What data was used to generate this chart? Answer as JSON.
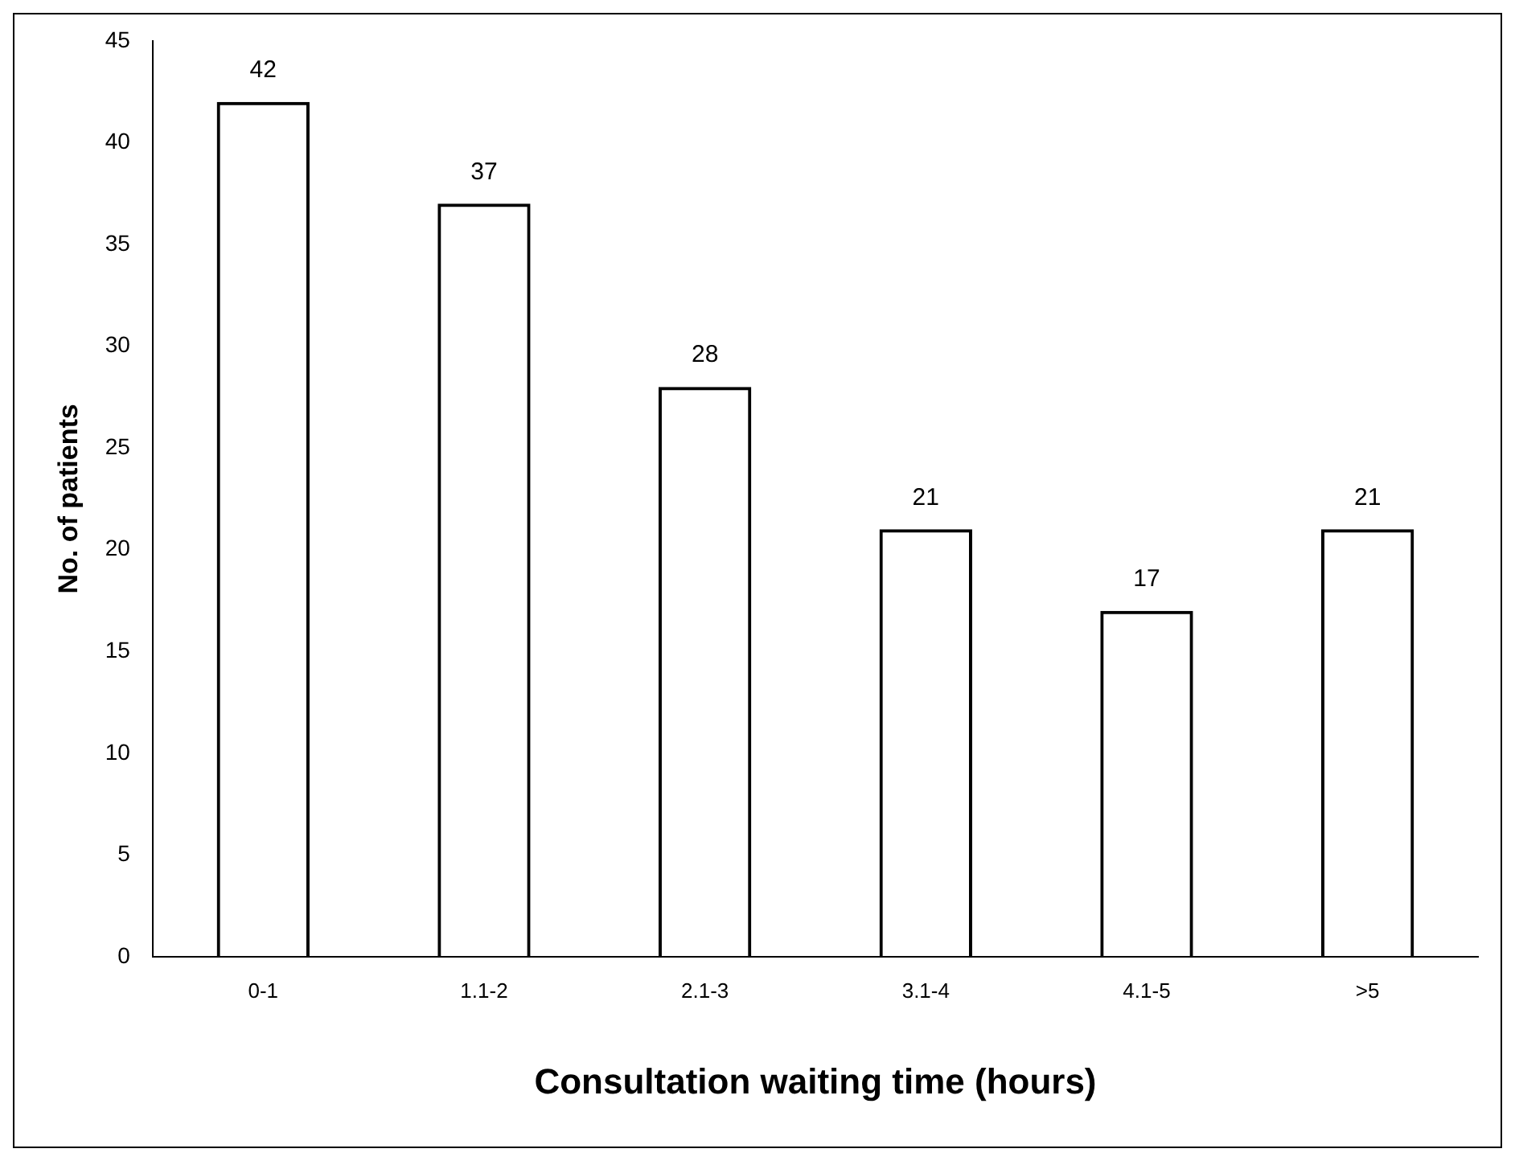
{
  "chart_data": {
    "type": "bar",
    "xlabel": "Consultation waiting time (hours)",
    "ylabel": "No. of patients",
    "categories": [
      "0-1",
      "1.1-2",
      "2.1-3",
      "3.1-4",
      "4.1-5",
      ">5"
    ],
    "values": [
      42,
      37,
      28,
      21,
      17,
      21
    ],
    "color": "#000000",
    "ylim": [
      0,
      45
    ],
    "yticks": [
      0,
      5,
      10,
      15,
      20,
      25,
      30,
      35,
      40,
      45
    ],
    "data_labels": true
  }
}
